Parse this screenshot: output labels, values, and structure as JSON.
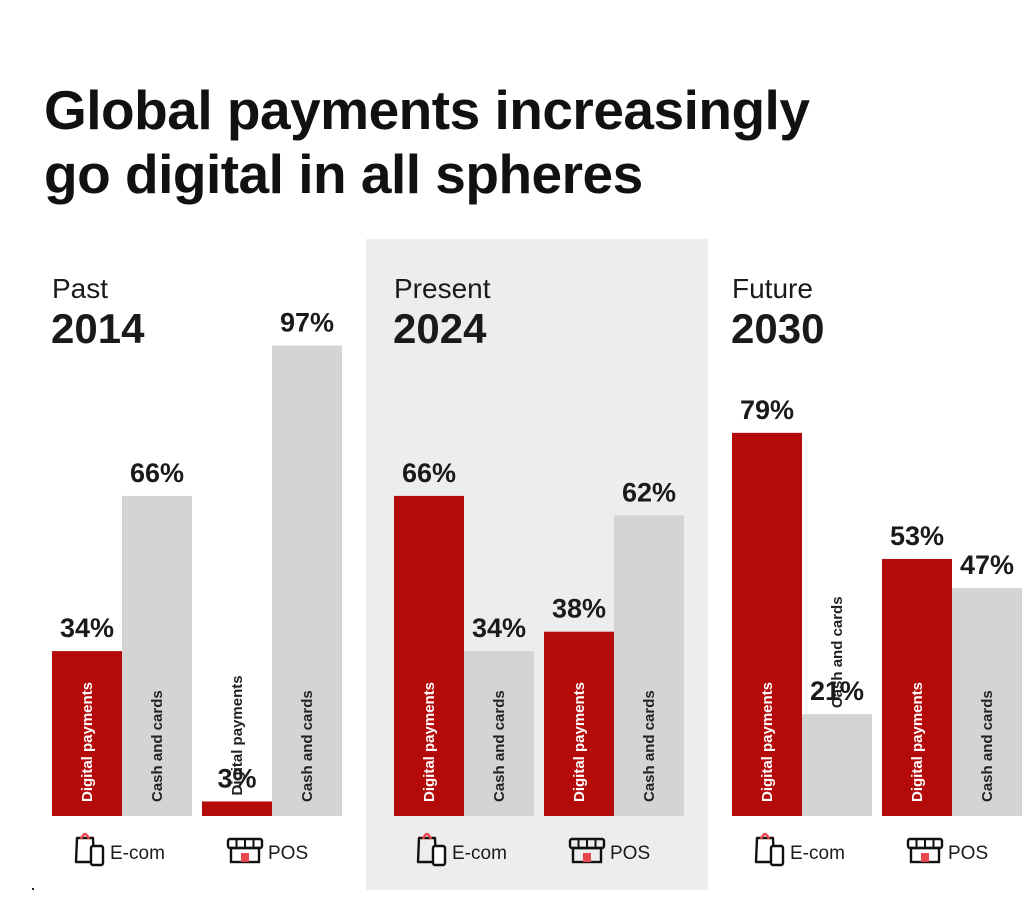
{
  "title_lines": [
    "Global payments increasingly",
    "go digital in all spheres"
  ],
  "colors": {
    "digital": "#b50a0a",
    "cash": "#d4d4d4",
    "present_background": "#ededed",
    "text": "#1a1a1a",
    "icon_accent": "#e8474c"
  },
  "chart_data": {
    "type": "bar",
    "title": "Global payments increasingly go digital in all spheres",
    "unit": "%",
    "ylim": [
      0,
      100
    ],
    "grid": false,
    "periods": [
      {
        "name": "Past",
        "year": "2014",
        "highlighted": false,
        "groups": [
          {
            "label": "E-com",
            "icon": "shopping-bag-phone-icon",
            "bars": [
              {
                "category": "Digital payments",
                "value": 34,
                "label": "34%"
              },
              {
                "category": "Cash and cards",
                "value": 66,
                "label": "66%"
              }
            ]
          },
          {
            "label": "POS",
            "icon": "storefront-icon",
            "bars": [
              {
                "category": "Digital payments",
                "value": 3,
                "label": "3%"
              },
              {
                "category": "Cash and cards",
                "value": 97,
                "label": "97%"
              }
            ]
          }
        ]
      },
      {
        "name": "Present",
        "year": "2024",
        "highlighted": true,
        "groups": [
          {
            "label": "E-com",
            "icon": "shopping-bag-phone-icon",
            "bars": [
              {
                "category": "Digital payments",
                "value": 66,
                "label": "66%"
              },
              {
                "category": "Cash and cards",
                "value": 34,
                "label": "34%"
              }
            ]
          },
          {
            "label": "POS",
            "icon": "storefront-icon",
            "bars": [
              {
                "category": "Digital payments",
                "value": 38,
                "label": "38%"
              },
              {
                "category": "Cash and cards",
                "value": 62,
                "label": "62%"
              }
            ]
          }
        ]
      },
      {
        "name": "Future",
        "year": "2030",
        "highlighted": false,
        "groups": [
          {
            "label": "E-com",
            "icon": "shopping-bag-phone-icon",
            "bars": [
              {
                "category": "Digital payments",
                "value": 79,
                "label": "79%"
              },
              {
                "category": "Cash and cards",
                "value": 21,
                "label": "21%"
              }
            ]
          },
          {
            "label": "POS",
            "icon": "storefront-icon",
            "bars": [
              {
                "category": "Digital payments",
                "value": 53,
                "label": "53%"
              },
              {
                "category": "Cash and cards",
                "value": 47,
                "label": "47%"
              }
            ]
          }
        ]
      }
    ]
  }
}
